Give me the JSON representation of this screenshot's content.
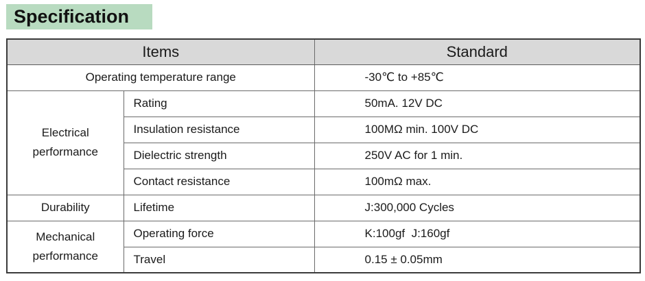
{
  "heading": "Specification",
  "table": {
    "header": {
      "items": "Items",
      "standard": "Standard"
    },
    "rows": {
      "temp": {
        "label": "Operating temperature range",
        "value": "-30℃ to +85℃"
      },
      "electrical": {
        "group": "Electrical performance",
        "rating": {
          "label": "Rating",
          "value": "50mA. 12V DC"
        },
        "insulation": {
          "label": "Insulation resistance",
          "value": "100MΩ min. 100V DC"
        },
        "dielectric": {
          "label": "Dielectric strength",
          "value": "250V AC for 1 min."
        },
        "contact": {
          "label": "Contact resistance",
          "value": "100mΩ max."
        }
      },
      "durability": {
        "group": "Durability",
        "lifetime": {
          "label": "Lifetime",
          "value": "J:300,000 Cycles"
        }
      },
      "mechanical": {
        "group": "Mechanical performance",
        "force": {
          "label": "Operating force",
          "value": "K:100gf  J:160gf"
        },
        "travel": {
          "label": "Travel",
          "value": "0.15 ± 0.05mm"
        }
      }
    }
  }
}
